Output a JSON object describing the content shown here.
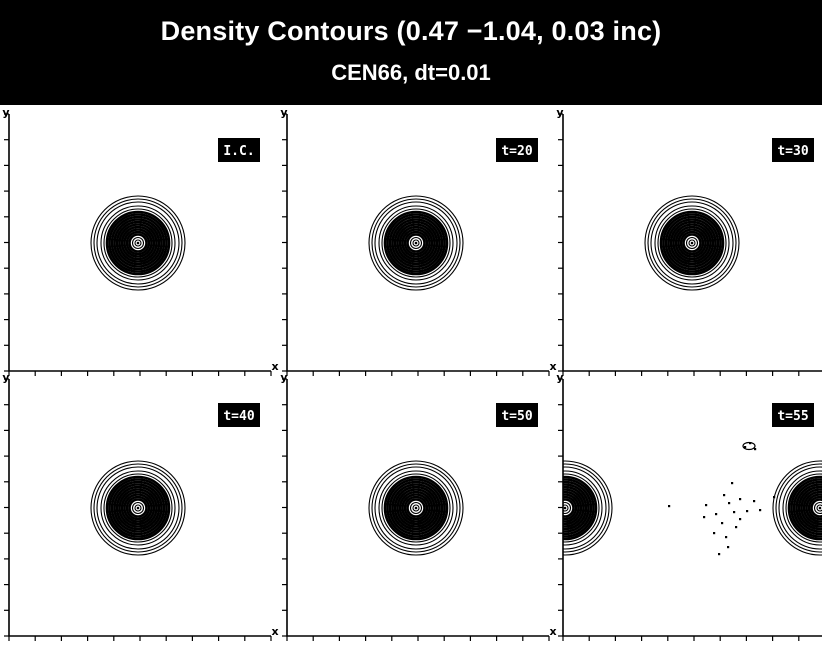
{
  "header": {
    "title": "Density Contours (0.47 −1.04, 0.03 inc)",
    "subtitle": "CEN66, dt=0.01"
  },
  "axes": {
    "x_label": "x",
    "y_label": "y"
  },
  "panels": [
    {
      "label": "I.C.",
      "state": "intact"
    },
    {
      "label": "t=20",
      "state": "intact"
    },
    {
      "label": "t=30",
      "state": "intact"
    },
    {
      "label": "t=40",
      "state": "intact"
    },
    {
      "label": "t=50",
      "state": "intact"
    },
    {
      "label": "t=55",
      "state": "disrupted"
    }
  ],
  "colors": {
    "header_bg": "#000000",
    "header_text": "#ffffff",
    "ink": "#000000",
    "paper": "#ffffff"
  }
}
